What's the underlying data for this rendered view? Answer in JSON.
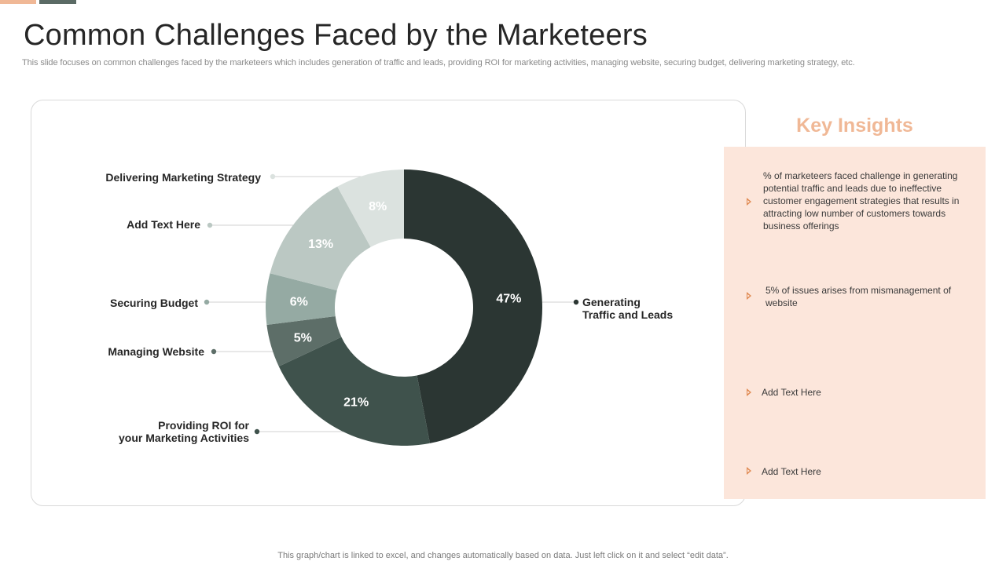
{
  "slide": {
    "title": "Common Challenges Faced by the Marketeers",
    "subtitle": "This slide focuses on common challenges faced by the marketeers which includes generation of traffic and leads, providing ROI for marketing activities, managing website, securing budget, delivering marketing strategy, etc.",
    "footer": "This graph/chart is linked to excel,  and changes automatically based on data. Just left click on it and select “edit data”."
  },
  "insights": {
    "title": "Key Insights",
    "items": [
      "% of marketeers faced challenge in generating potential traffic and leads due to ineffective customer engagement strategies that results in attracting low number of customers towards business offerings",
      "5% of issues arises from mismanagement of website",
      "Add Text Here",
      "Add Text Here"
    ],
    "accent_color": "#f0b896",
    "box_color": "#fce6db",
    "arrow_color": "#e08a52"
  },
  "chart_data": {
    "type": "pie",
    "variant": "donut",
    "slices": [
      {
        "label": "Generating Traffic and Leads",
        "value": 47,
        "display": "47%",
        "color": "#2b3633"
      },
      {
        "label": "Providing ROI for your Marketing Activities",
        "value": 21,
        "display": "21%",
        "color": "#3f524c"
      },
      {
        "label": "Managing Website",
        "value": 5,
        "display": "5%",
        "color": "#5d6e68"
      },
      {
        "label": "Securing Budget",
        "value": 6,
        "display": "6%",
        "color": "#95aaa3"
      },
      {
        "label": "Add Text Here",
        "value": 13,
        "display": "13%",
        "color": "#bbc8c3"
      },
      {
        "label": "Delivering Marketing Strategy",
        "value": 8,
        "display": "8%",
        "color": "#dbe2df"
      }
    ],
    "start": "12 o'clock",
    "direction": "clockwise"
  }
}
